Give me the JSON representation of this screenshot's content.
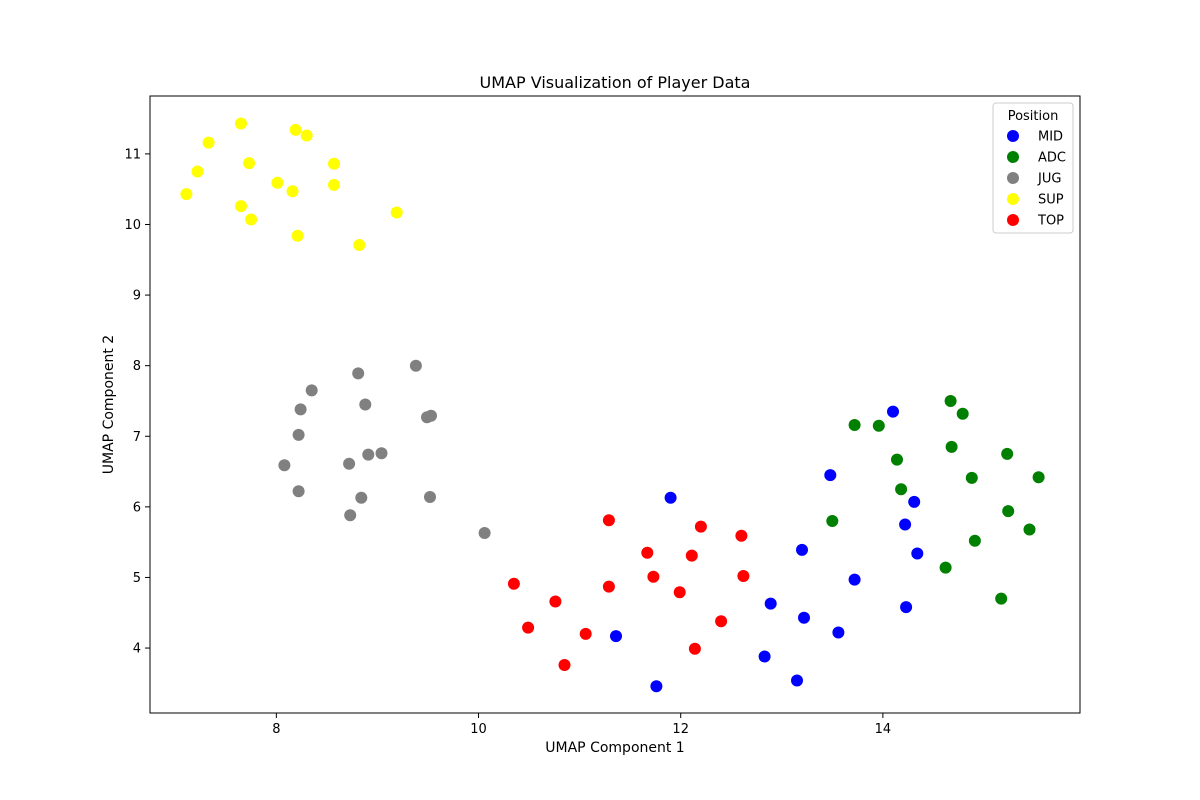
{
  "chart_data": {
    "type": "scatter",
    "title": "UMAP Visualization of Player Data",
    "xlabel": "UMAP Component 1",
    "ylabel": "UMAP Component 2",
    "xlim": [
      6.75,
      15.95
    ],
    "ylim": [
      3.08,
      11.82
    ],
    "xticks": [
      8,
      10,
      12,
      14
    ],
    "yticks": [
      4,
      5,
      6,
      7,
      8,
      9,
      10,
      11
    ],
    "grid": false,
    "legend": {
      "title": "Position",
      "placement": "top-right"
    },
    "series": [
      {
        "name": "MID",
        "color": "#0000ff",
        "points": [
          [
            14.1,
            7.35
          ],
          [
            13.48,
            6.45
          ],
          [
            14.31,
            6.07
          ],
          [
            11.9,
            6.13
          ],
          [
            14.22,
            5.75
          ],
          [
            13.2,
            5.39
          ],
          [
            14.34,
            5.34
          ],
          [
            13.72,
            4.97
          ],
          [
            12.89,
            4.63
          ],
          [
            14.23,
            4.58
          ],
          [
            13.22,
            4.43
          ],
          [
            13.56,
            4.22
          ],
          [
            11.36,
            4.17
          ],
          [
            12.83,
            3.88
          ],
          [
            13.15,
            3.54
          ],
          [
            11.76,
            3.46
          ]
        ]
      },
      {
        "name": "ADC",
        "color": "#008000",
        "points": [
          [
            14.67,
            7.5
          ],
          [
            14.79,
            7.32
          ],
          [
            13.72,
            7.16
          ],
          [
            13.96,
            7.15
          ],
          [
            14.68,
            6.85
          ],
          [
            15.23,
            6.75
          ],
          [
            14.14,
            6.67
          ],
          [
            14.88,
            6.41
          ],
          [
            15.54,
            6.42
          ],
          [
            14.18,
            6.25
          ],
          [
            15.24,
            5.94
          ],
          [
            13.5,
            5.8
          ],
          [
            15.45,
            5.68
          ],
          [
            14.91,
            5.52
          ],
          [
            14.62,
            5.14
          ],
          [
            15.17,
            4.7
          ]
        ]
      },
      {
        "name": "JUG",
        "color": "#808080",
        "points": [
          [
            9.38,
            8.0
          ],
          [
            8.81,
            7.89
          ],
          [
            8.35,
            7.65
          ],
          [
            8.88,
            7.45
          ],
          [
            8.24,
            7.38
          ],
          [
            9.53,
            7.29
          ],
          [
            9.49,
            7.27
          ],
          [
            8.22,
            7.02
          ],
          [
            9.04,
            6.76
          ],
          [
            8.91,
            6.74
          ],
          [
            8.72,
            6.61
          ],
          [
            8.08,
            6.59
          ],
          [
            8.22,
            6.22
          ],
          [
            8.84,
            6.13
          ],
          [
            9.52,
            6.14
          ],
          [
            8.73,
            5.88
          ],
          [
            10.06,
            5.63
          ]
        ]
      },
      {
        "name": "SUP",
        "color": "#ffff00",
        "points": [
          [
            7.65,
            11.43
          ],
          [
            8.19,
            11.34
          ],
          [
            8.3,
            11.26
          ],
          [
            7.33,
            11.16
          ],
          [
            7.73,
            10.87
          ],
          [
            8.57,
            10.86
          ],
          [
            7.22,
            10.75
          ],
          [
            8.01,
            10.59
          ],
          [
            8.57,
            10.56
          ],
          [
            8.16,
            10.47
          ],
          [
            7.11,
            10.43
          ],
          [
            7.65,
            10.26
          ],
          [
            9.19,
            10.17
          ],
          [
            7.75,
            10.07
          ],
          [
            8.21,
            9.84
          ],
          [
            8.82,
            9.71
          ]
        ]
      },
      {
        "name": "TOP",
        "color": "#ff0000",
        "points": [
          [
            11.29,
            5.81
          ],
          [
            12.2,
            5.72
          ],
          [
            12.6,
            5.59
          ],
          [
            11.67,
            5.35
          ],
          [
            12.11,
            5.31
          ],
          [
            11.73,
            5.01
          ],
          [
            12.62,
            5.02
          ],
          [
            10.35,
            4.91
          ],
          [
            11.29,
            4.87
          ],
          [
            11.99,
            4.79
          ],
          [
            10.76,
            4.66
          ],
          [
            10.49,
            4.29
          ],
          [
            12.4,
            4.38
          ],
          [
            11.06,
            4.2
          ],
          [
            12.14,
            3.99
          ],
          [
            10.85,
            3.76
          ]
        ]
      }
    ]
  }
}
